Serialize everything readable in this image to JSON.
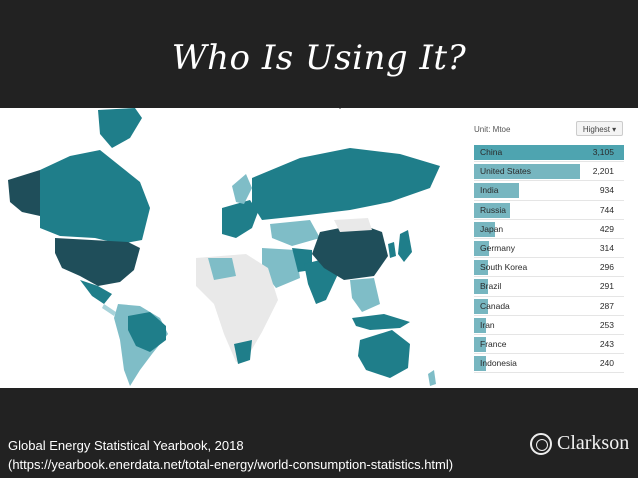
{
  "slide": {
    "title": "Who Is Using It?",
    "source_line1": "Global Energy Statistical Yearbook, 2018",
    "source_line2": "(https://yearbook.enerdata.net/total-energy/world-consumption-statistics.html)",
    "logo_text": "Clarkson"
  },
  "panel": {
    "unit": "Unit: Mtoe",
    "sort_label": "Highest"
  },
  "colors": {
    "slide_bg": "#222222",
    "map_dark": "#1f4e5a",
    "map_mid": "#1f7e8a",
    "map_light": "#7fbdc7",
    "map_faint": "#a8d3da",
    "map_none": "#e9e9e9",
    "bar": "#77b6c0",
    "bar_top": "#4ea4b0"
  },
  "chart_data": {
    "type": "bar",
    "unit": "Mtoe",
    "categories": [
      "China",
      "United States",
      "India",
      "Russia",
      "Japan",
      "Germany",
      "South Korea",
      "Brazil",
      "Canada",
      "Iran",
      "France",
      "Indonesia"
    ],
    "values": [
      3105,
      2201,
      934,
      744,
      429,
      314,
      296,
      291,
      287,
      253,
      243,
      240
    ],
    "labels": [
      "3,105",
      "2,201",
      "934",
      "744",
      "429",
      "314",
      "296",
      "291",
      "287",
      "253",
      "243",
      "240"
    ]
  }
}
